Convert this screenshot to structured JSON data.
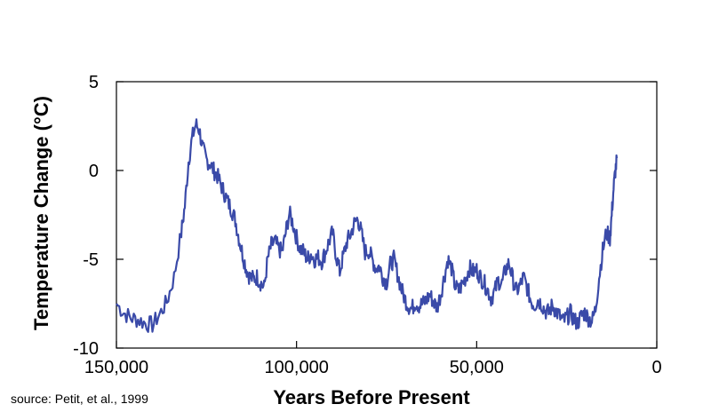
{
  "chart_data": {
    "type": "line",
    "title": "",
    "xlabel": "Years Before Present",
    "ylabel": "Temperature Change (°C)",
    "xlim": [
      150000,
      0
    ],
    "ylim": [
      -10,
      5
    ],
    "x_ticks": [
      150000,
      100000,
      50000,
      0
    ],
    "x_tick_labels": [
      "150,000",
      "100,000",
      "50,000",
      "0"
    ],
    "y_ticks": [
      5,
      0,
      -5,
      -10
    ],
    "y_tick_labels": [
      "5",
      "0",
      "-5",
      "-10"
    ],
    "grid": false,
    "legend": "none",
    "series": [
      {
        "color": "#3a4aa8",
        "x": [
          150000,
          148000,
          146000,
          144000,
          142000,
          140000,
          138000,
          136000,
          134000,
          132000,
          131000,
          130000,
          129000,
          128000,
          127000,
          126000,
          125000,
          124000,
          123000,
          122000,
          121000,
          120000,
          119000,
          118000,
          117000,
          116000,
          115000,
          114000,
          113000,
          112000,
          111000,
          110000,
          109000,
          108000,
          107000,
          106000,
          105000,
          104000,
          103000,
          102000,
          101000,
          100000,
          99000,
          98000,
          97000,
          96000,
          95000,
          94000,
          93000,
          92000,
          91000,
          90000,
          89000,
          88000,
          87000,
          86000,
          85000,
          84000,
          83000,
          82000,
          81000,
          80000,
          79000,
          78000,
          77000,
          76000,
          75000,
          74000,
          73000,
          72000,
          71000,
          70000,
          69000,
          68000,
          67000,
          66000,
          65000,
          64000,
          63000,
          62000,
          61000,
          60000,
          59000,
          58000,
          57000,
          56000,
          55000,
          54000,
          53000,
          52000,
          51000,
          50000,
          49000,
          48000,
          47000,
          46000,
          45000,
          44000,
          43000,
          42000,
          41000,
          40000,
          39000,
          38000,
          37000,
          36000,
          35000,
          34000,
          33000,
          32000,
          31000,
          30000,
          29000,
          28000,
          27000,
          26000,
          25000,
          24000,
          23000,
          22000,
          21000,
          20000,
          19000,
          18000,
          17000,
          16000,
          15000,
          14000,
          13000,
          12500,
          12000,
          11500,
          11000
        ],
        "values": [
          -7.5,
          -8.0,
          -8.3,
          -8.4,
          -8.6,
          -8.7,
          -8.1,
          -7.4,
          -6.0,
          -3.5,
          -2.0,
          0.5,
          1.8,
          2.6,
          2.3,
          1.2,
          0.6,
          0.4,
          0.0,
          -0.3,
          -0.8,
          -1.3,
          -1.8,
          -2.2,
          -2.8,
          -3.8,
          -4.7,
          -5.5,
          -6.0,
          -6.1,
          -6.0,
          -6.3,
          -6.6,
          -5.0,
          -4.2,
          -4.0,
          -4.4,
          -4.6,
          -3.5,
          -2.4,
          -3.0,
          -3.8,
          -4.4,
          -4.6,
          -5.0,
          -4.7,
          -5.0,
          -4.9,
          -5.1,
          -4.6,
          -4.0,
          -3.5,
          -4.8,
          -5.7,
          -4.8,
          -4.0,
          -3.6,
          -3.0,
          -2.7,
          -3.5,
          -4.6,
          -4.5,
          -5.0,
          -5.5,
          -5.4,
          -6.0,
          -6.3,
          -5.3,
          -5.0,
          -5.8,
          -6.6,
          -7.2,
          -7.6,
          -7.8,
          -7.4,
          -7.6,
          -7.5,
          -7.3,
          -7.0,
          -7.4,
          -7.7,
          -7.0,
          -6.0,
          -5.0,
          -5.5,
          -6.5,
          -6.8,
          -6.4,
          -6.0,
          -5.5,
          -5.7,
          -5.6,
          -6.0,
          -6.3,
          -6.7,
          -7.2,
          -6.8,
          -6.2,
          -6.4,
          -5.6,
          -5.2,
          -6.1,
          -6.8,
          -6.5,
          -6.0,
          -6.6,
          -7.3,
          -7.6,
          -7.3,
          -7.5,
          -7.9,
          -8.0,
          -7.6,
          -7.9,
          -8.2,
          -8.5,
          -8.3,
          -8.0,
          -8.4,
          -8.6,
          -8.2,
          -8.0,
          -8.3,
          -8.5,
          -7.8,
          -6.0,
          -4.5,
          -3.5,
          -3.8,
          -2.5,
          -1.0,
          0.0,
          0.7
        ]
      }
    ]
  },
  "source_text": "source: Petit, et al., 1999"
}
